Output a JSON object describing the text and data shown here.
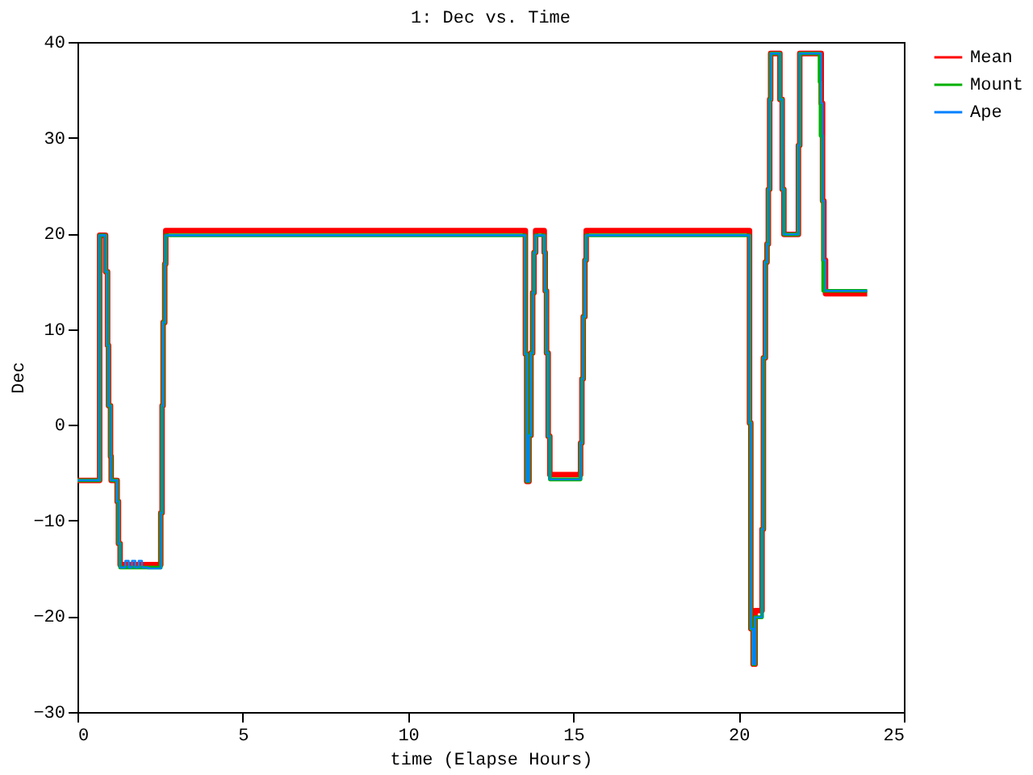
{
  "chart_data": {
    "type": "step",
    "title": "1: Dec vs. Time",
    "xlabel": "time (Elapse Hours)",
    "ylabel": "Dec",
    "xlim": [
      0,
      25
    ],
    "xticks": [
      0,
      5,
      10,
      15,
      20,
      25
    ],
    "ylim": [
      -30,
      40
    ],
    "yticks": [
      -30,
      -20,
      -10,
      0,
      10,
      20,
      30,
      40
    ],
    "grid": false,
    "legend": "top right",
    "marker": "none",
    "line_style": "solid",
    "series": [
      {
        "name": "Mean",
        "color": "#ff0000",
        "x": [
          0,
          0.63,
          0.67,
          0.85,
          0.91,
          0.94,
          1.0,
          1.02,
          1.2,
          1.24,
          1.29,
          2.52,
          2.56,
          2.59,
          2.64,
          2.67,
          2.71,
          13.55,
          13.59,
          13.66,
          13.72,
          13.77,
          13.81,
          13.86,
          14.12,
          14.15,
          14.19,
          14.24,
          14.29,
          15.22,
          15.26,
          15.3,
          15.35,
          15.39,
          20.33,
          20.37,
          20.44,
          20.5,
          20.71,
          20.75,
          20.81,
          20.86,
          20.9,
          20.94,
          20.97,
          21.25,
          21.32,
          21.37,
          21.81,
          21.85,
          22.5,
          22.54,
          22.58,
          22.63,
          23.89
        ],
        "values": [
          -5.8,
          -5.8,
          19.8,
          16,
          8.3,
          2,
          -3.3,
          -5.8,
          -8,
          -12.4,
          -14.6,
          -9.2,
          2,
          10.7,
          16.8,
          20.3,
          20.3,
          7.4,
          -5.9,
          -1.1,
          7.5,
          13.8,
          18,
          20.3,
          18,
          14,
          7.5,
          -1.2,
          -5.2,
          -1.9,
          4.8,
          11.3,
          17.2,
          20.3,
          0.2,
          -21.3,
          -25,
          -19.4,
          -10.9,
          7,
          17,
          18.9,
          24.6,
          34,
          38.8,
          34,
          24.6,
          19.9,
          29.2,
          38.8,
          33.6,
          23.4,
          17.2,
          13.7,
          13.7
        ]
      },
      {
        "name": "Mount",
        "color": "#00b000",
        "x": [
          0,
          0.63,
          0.67,
          0.85,
          0.91,
          0.94,
          1.0,
          1.02,
          1.2,
          1.24,
          1.29,
          2.52,
          2.56,
          2.59,
          2.64,
          2.67,
          2.71,
          13.55,
          13.59,
          13.66,
          13.72,
          13.77,
          13.81,
          13.86,
          14.12,
          14.15,
          14.19,
          14.24,
          14.29,
          15.22,
          15.26,
          15.3,
          15.35,
          15.39,
          20.33,
          20.37,
          20.44,
          20.5,
          20.71,
          20.75,
          20.81,
          20.86,
          20.9,
          20.94,
          20.97,
          21.25,
          21.32,
          21.37,
          21.81,
          21.85,
          22.45,
          22.48,
          22.53,
          22.56,
          23.89
        ],
        "values": [
          -5.8,
          -5.8,
          19.8,
          16,
          8.3,
          2,
          -3.3,
          -5.8,
          -8,
          -12.4,
          -14.9,
          -9.2,
          2,
          10.7,
          16.8,
          19.8,
          19.8,
          7.4,
          -5.9,
          -1.1,
          7.5,
          13.8,
          18,
          19.8,
          18,
          14,
          7.5,
          -1.2,
          -5.7,
          -1.9,
          4.8,
          11.3,
          17.2,
          19.8,
          0.2,
          -21.3,
          -25,
          -20.1,
          -10.9,
          7,
          17,
          18.9,
          24.6,
          34,
          38.8,
          34,
          24.6,
          19.9,
          29.2,
          38.8,
          35.8,
          30.2,
          23.4,
          14,
          14
        ]
      },
      {
        "name": "Ape",
        "color": "#0080ff",
        "x": [
          0,
          0.63,
          0.67,
          0.85,
          0.91,
          0.94,
          1.0,
          1.02,
          1.2,
          1.24,
          1.29,
          1.45,
          1.55,
          1.65,
          1.75,
          1.85,
          1.95,
          2.14,
          2.52,
          2.56,
          2.59,
          2.64,
          2.67,
          2.71,
          13.55,
          13.59,
          13.66,
          13.72,
          13.77,
          13.81,
          13.86,
          14.12,
          14.15,
          14.19,
          14.24,
          14.29,
          15.22,
          15.26,
          15.3,
          15.35,
          15.39,
          20.33,
          20.37,
          20.44,
          20.5,
          20.71,
          20.75,
          20.81,
          20.86,
          20.9,
          20.94,
          20.97,
          21.25,
          21.32,
          21.37,
          21.81,
          21.85,
          22.5,
          22.54,
          22.58,
          22.63,
          23.89
        ],
        "values": [
          -5.8,
          -5.8,
          19.8,
          16,
          8.3,
          2,
          -3.3,
          -5.8,
          -8,
          -12.4,
          -14.9,
          -14.2,
          -14.9,
          -14.2,
          -14.9,
          -14.2,
          -14.9,
          -15,
          -9.2,
          2,
          10.7,
          16.8,
          19.8,
          19.8,
          7.4,
          -5.9,
          -1.1,
          7.5,
          13.8,
          18,
          19.8,
          18,
          14,
          7.5,
          -1.2,
          -5.7,
          -1.9,
          4.8,
          11.3,
          17.2,
          19.8,
          0.2,
          -21.3,
          -25,
          -20.1,
          -10.9,
          7,
          17,
          18.9,
          24.6,
          34,
          38.8,
          34,
          24.6,
          19.9,
          29.2,
          38.8,
          33.6,
          23.4,
          17.2,
          14,
          14
        ]
      }
    ]
  }
}
